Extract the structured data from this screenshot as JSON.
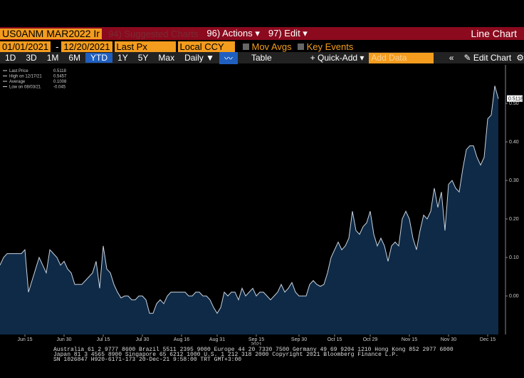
{
  "toolbar": {
    "security": "US0ANM MAR2022 Ir",
    "suggested": "94) Suggested Charts",
    "actions": "96) Actions",
    "edit": "97) Edit",
    "view": "Line Chart",
    "start_date": "01/01/2021",
    "date_sep": "-",
    "end_date": "12/20/2021",
    "field": "Last Px",
    "currency": "Local CCY",
    "mov_avgs": "Mov Avgs",
    "key_events": "Key Events",
    "periods": [
      "1D",
      "3D",
      "1M",
      "6M",
      "YTD",
      "1Y",
      "5Y",
      "Max"
    ],
    "frequency": "Daily",
    "table": "Table",
    "quick_add": "Quick-Add",
    "add_data": "Add Data",
    "edit_chart": "Edit Chart"
  },
  "chart_data": {
    "type": "area",
    "color": "#0e2a47",
    "line_color": "#c9d3de",
    "legend": [
      {
        "label": "Last Price",
        "value": "0.5118"
      },
      {
        "label": "High on 12/17/21",
        "value": "0.5457"
      },
      {
        "label": "Average",
        "value": "0.1008"
      },
      {
        "label": "Low on 08/03/21",
        "value": "-0.045"
      }
    ],
    "last_value_label": "0.5118",
    "values": [
      0.08,
      0.1,
      0.11,
      0.11,
      0.11,
      0.11,
      0.11,
      0.12,
      0.01,
      0.04,
      0.07,
      0.1,
      0.08,
      0.06,
      0.12,
      0.11,
      0.1,
      0.08,
      0.09,
      0.07,
      0.06,
      0.03,
      0.03,
      0.03,
      0.04,
      0.05,
      0.06,
      0.09,
      0.02,
      0.13,
      0.07,
      0.06,
      0.03,
      0.01,
      -0.005,
      0.0,
      0.0,
      -0.01,
      -0.01,
      0.0,
      0.0,
      -0.01,
      -0.045,
      -0.045,
      -0.02,
      -0.01,
      -0.02,
      0.0,
      0.01,
      0.01,
      0.01,
      0.01,
      0.01,
      0.0,
      0.0,
      0.01,
      0.01,
      0.0,
      0.0,
      -0.01,
      -0.03,
      -0.045,
      -0.03,
      0.01,
      0.0,
      0.01,
      0.01,
      -0.01,
      0.02,
      0.0,
      0.01,
      0.02,
      0.0,
      0.01,
      0.01,
      0.0,
      -0.01,
      0.0,
      0.01,
      0.03,
      0.01,
      0.02,
      0.035,
      0.01,
      0.0,
      0.0,
      0.0,
      0.03,
      0.04,
      0.03,
      0.025,
      0.03,
      0.06,
      0.1,
      0.12,
      0.14,
      0.12,
      0.13,
      0.15,
      0.22,
      0.17,
      0.16,
      0.18,
      0.19,
      0.22,
      0.16,
      0.13,
      0.15,
      0.13,
      0.09,
      0.13,
      0.14,
      0.13,
      0.2,
      0.22,
      0.2,
      0.15,
      0.12,
      0.17,
      0.21,
      0.2,
      0.22,
      0.28,
      0.23,
      0.27,
      0.17,
      0.29,
      0.3,
      0.28,
      0.27,
      0.33,
      0.38,
      0.39,
      0.39,
      0.36,
      0.34,
      0.36,
      0.46,
      0.47,
      0.5457,
      0.5118
    ],
    "xlim": [
      0,
      142
    ],
    "xticks": [
      {
        "value": 7,
        "label": "Jun 15"
      },
      {
        "value": 18,
        "label": "Jun 30"
      },
      {
        "value": 29,
        "label": "Jul 15"
      },
      {
        "value": 40,
        "label": "Jul 30"
      },
      {
        "value": 51,
        "label": "Aug 16"
      },
      {
        "value": 61,
        "label": "Aug 31"
      },
      {
        "value": 72,
        "label": "Sep 15"
      },
      {
        "value": 84,
        "label": "Sep 30"
      },
      {
        "value": 94,
        "label": "Oct 15"
      },
      {
        "value": 104,
        "label": "Oct 29"
      },
      {
        "value": 115,
        "label": "Nov 15"
      },
      {
        "value": 126,
        "label": "Nov 30"
      },
      {
        "value": 137,
        "label": "Dec 15"
      }
    ],
    "year_label": "2021",
    "ylim": [
      -0.1,
      0.6
    ],
    "yticks": [
      {
        "value": 0,
        "label": "0.00"
      },
      {
        "value": 0.1,
        "label": "0.10"
      },
      {
        "value": 0.2,
        "label": "0.20"
      },
      {
        "value": 0.3,
        "label": "0.30"
      },
      {
        "value": 0.4,
        "label": "0.40"
      },
      {
        "value": 0.5,
        "label": "0.50"
      }
    ]
  },
  "footer": [
    "Australia 61 2 9777 8600 Brazil 5511 2395 9000 Europe 44 20 7330 7500 Germany 49 69 9204 1210 Hong Kong 852 2977 6000",
    "Japan 81 3 4565 8900 Singapore 65 6212 1000 U.S. 1 212 318 2000 Copyright 2021 Bloomberg Finance L.P.",
    "SN 1026847 H920-6171-173 20-Dec-21 9:58:00 TRT GMT+3:00"
  ]
}
